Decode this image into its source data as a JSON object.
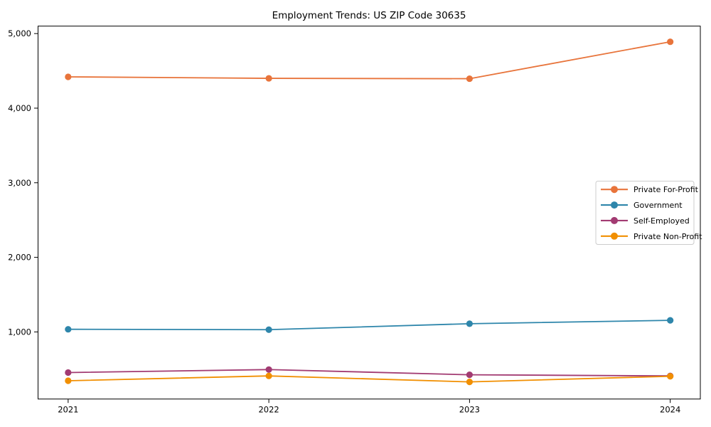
{
  "figure": {
    "background": "#ffffff"
  },
  "chart_data": {
    "type": "line",
    "title": "Employment Trends: US ZIP Code 30635",
    "xlabel": "",
    "ylabel": "",
    "x": [
      2021,
      2022,
      2023,
      2024
    ],
    "x_tick_labels": [
      "2021",
      "2022",
      "2023",
      "2024"
    ],
    "series": [
      {
        "name": "Private For-Profit",
        "color": "#E8743B",
        "values": [
          4420,
          4400,
          4395,
          4890
        ]
      },
      {
        "name": "Government",
        "color": "#2E86AB",
        "values": [
          1035,
          1030,
          1110,
          1155
        ]
      },
      {
        "name": "Self-Employed",
        "color": "#A23B72",
        "values": [
          455,
          495,
          425,
          410
        ]
      },
      {
        "name": "Private Non-Profit",
        "color": "#F18F01",
        "values": [
          345,
          410,
          330,
          405
        ]
      }
    ],
    "yticks": [
      1000,
      2000,
      3000,
      4000,
      5000
    ],
    "ytick_labels": [
      "1,000",
      "2,000",
      "3,000",
      "4,000",
      "5,000"
    ],
    "ylim": [
      100,
      5100
    ],
    "xlim": [
      2020.85,
      2024.15
    ],
    "grid": false,
    "legend": {
      "position": "right-center",
      "entries": [
        "Private For-Profit",
        "Government",
        "Self-Employed",
        "Private Non-Profit"
      ]
    },
    "marker": "circle",
    "axis_color": "#000000",
    "legend_border_color": "#cccccc"
  }
}
